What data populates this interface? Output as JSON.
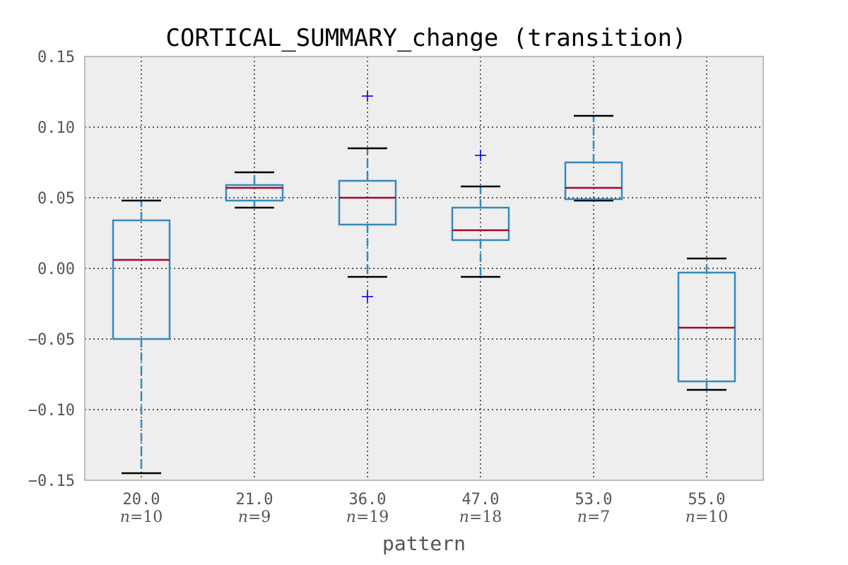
{
  "chart_data": {
    "type": "box",
    "title": "CORTICAL_SUMMARY_change (transition)",
    "xlabel": "pattern",
    "ylabel": "",
    "ylim": [
      -0.15,
      0.15
    ],
    "yticks": [
      "0.15",
      "0.10",
      "0.05",
      "0.00",
      "−0.05",
      "−0.10",
      "−0.15"
    ],
    "ytick_values": [
      0.15,
      0.1,
      0.05,
      0.0,
      -0.05,
      -0.1,
      -0.15
    ],
    "grid": true,
    "n_prefix": "n",
    "groups": [
      {
        "category": "20.0",
        "n_label": "=10",
        "whisker_low": -0.145,
        "q1": -0.05,
        "median": 0.006,
        "q3": 0.034,
        "whisker_high": 0.048,
        "outliers": []
      },
      {
        "category": "21.0",
        "n_label": "=9",
        "whisker_low": 0.043,
        "q1": 0.048,
        "median": 0.057,
        "q3": 0.059,
        "whisker_high": 0.068,
        "outliers": []
      },
      {
        "category": "36.0",
        "n_label": "=19",
        "whisker_low": -0.006,
        "q1": 0.031,
        "median": 0.05,
        "q3": 0.062,
        "whisker_high": 0.085,
        "outliers": [
          0.122,
          -0.02
        ]
      },
      {
        "category": "47.0",
        "n_label": "=18",
        "whisker_low": -0.006,
        "q1": 0.02,
        "median": 0.027,
        "q3": 0.043,
        "whisker_high": 0.058,
        "outliers": [
          0.08
        ]
      },
      {
        "category": "53.0",
        "n_label": "=7",
        "whisker_low": 0.048,
        "q1": 0.049,
        "median": 0.057,
        "q3": 0.075,
        "whisker_high": 0.108,
        "outliers": []
      },
      {
        "category": "55.0",
        "n_label": "=10",
        "whisker_low": -0.086,
        "q1": -0.08,
        "median": -0.042,
        "q3": -0.003,
        "whisker_high": 0.007,
        "outliers": []
      }
    ],
    "colors": {
      "box": "#348abd",
      "median": "#a60628",
      "whisker_cap": "#000000",
      "outlier": "#0000ff",
      "plot_bg": "#eeeeee",
      "frame": "#bcbcbc"
    }
  }
}
